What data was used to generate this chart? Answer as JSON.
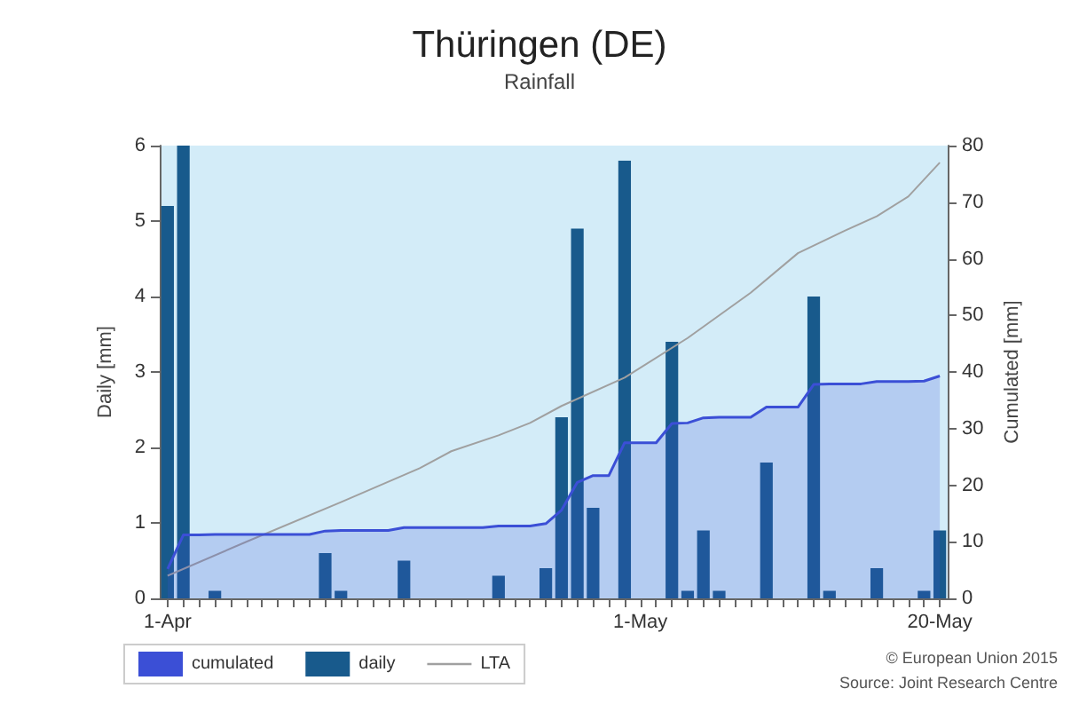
{
  "chart_data": {
    "type": "bar",
    "title": "Thüringen (DE)",
    "subtitle": "Rainfall",
    "ylabel": "Daily [mm]",
    "y2label": "Cumulated [mm]",
    "categories": [
      "1-Apr",
      null,
      null,
      null,
      null,
      null,
      null,
      null,
      null,
      null,
      null,
      null,
      null,
      null,
      null,
      null,
      null,
      null,
      null,
      null,
      null,
      null,
      null,
      null,
      null,
      null,
      null,
      null,
      null,
      null,
      "1-May",
      null,
      null,
      null,
      null,
      null,
      null,
      null,
      null,
      null,
      null,
      null,
      null,
      null,
      null,
      null,
      null,
      null,
      null,
      "20-May"
    ],
    "series": [
      {
        "name": "cumulated",
        "type": "area",
        "axis": "y2",
        "color": "#3b4fd6",
        "values": [
          5.2,
          11.2,
          11.2,
          11.3,
          11.3,
          11.3,
          11.3,
          11.3,
          11.3,
          11.3,
          11.9,
          12.0,
          12.0,
          12.0,
          12.0,
          12.5,
          12.5,
          12.5,
          12.5,
          12.5,
          12.5,
          12.8,
          12.8,
          12.8,
          13.2,
          15.6,
          20.5,
          21.7,
          21.7,
          27.5,
          27.5,
          27.5,
          30.9,
          31.0,
          31.9,
          32.0,
          32.0,
          32.0,
          33.8,
          33.8,
          33.8,
          37.8,
          37.9,
          37.9,
          37.9,
          38.3,
          38.3,
          38.3,
          38.4,
          39.3
        ]
      },
      {
        "name": "daily",
        "color": "#185a8c",
        "values": [
          5.2,
          6,
          0,
          0.1,
          0,
          0,
          0,
          0,
          0,
          0,
          0.6,
          0.1,
          0,
          0,
          0,
          0.5,
          0,
          0,
          0,
          0,
          0,
          0.3,
          0,
          0,
          0.4,
          2.4,
          4.9,
          1.2,
          0,
          5.8,
          0,
          0,
          3.4,
          0.1,
          0.9,
          0.1,
          0,
          0,
          1.8,
          0,
          0,
          4.0,
          0.1,
          0,
          0,
          0.4,
          0,
          0,
          0.1,
          0.9
        ]
      },
      {
        "name": "LTA",
        "type": "line",
        "axis": "y2",
        "color": "#a0a0a0",
        "values": [
          4,
          null,
          null,
          null,
          null,
          10,
          null,
          null,
          null,
          null,
          null,
          17,
          null,
          null,
          null,
          null,
          23,
          null,
          26,
          null,
          null,
          28.8,
          null,
          31,
          null,
          34,
          null,
          null,
          null,
          39,
          null,
          null,
          null,
          46,
          null,
          null,
          null,
          54,
          null,
          null,
          61,
          null,
          null,
          65,
          null,
          67.5,
          null,
          71,
          null,
          77
        ]
      }
    ],
    "ylim": [
      0,
      6
    ],
    "yticks": [
      0,
      1,
      2,
      3,
      4,
      5,
      6
    ],
    "y2lim": [
      0,
      80
    ],
    "y2ticks": [
      0,
      10,
      20,
      30,
      40,
      50,
      60,
      70,
      80
    ],
    "legend": "bottom left",
    "annotations": [
      "© European Union 2015",
      "Source: Joint Research Centre"
    ]
  }
}
